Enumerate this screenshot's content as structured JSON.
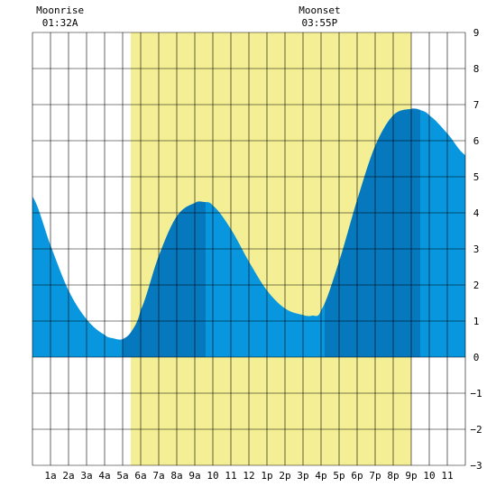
{
  "chart_data": {
    "type": "area",
    "x_ticks": [
      "1a",
      "2a",
      "3a",
      "4a",
      "5a",
      "6a",
      "7a",
      "8a",
      "9a",
      "10",
      "11",
      "12",
      "1p",
      "2p",
      "3p",
      "4p",
      "5p",
      "6p",
      "7p",
      "8p",
      "9p",
      "10",
      "11"
    ],
    "xlim": [
      0,
      24
    ],
    "ylim": [
      -3,
      9
    ],
    "y_ticks": [
      "9",
      "8",
      "7",
      "6",
      "5",
      "4",
      "3",
      "2",
      "1",
      "0",
      "−1",
      "−2",
      "−3"
    ],
    "daylight": {
      "start_hour": 5.45,
      "end_hour": 21.0
    },
    "moonrise": {
      "label": "Moonrise",
      "time": "01:32A",
      "hour": 1.53
    },
    "moonset": {
      "label": "Moonset",
      "time": "03:55P",
      "hour": 15.92
    },
    "tide_curve": {
      "hours": [
        0,
        1,
        2,
        3,
        4,
        4.5,
        5,
        5.5,
        6,
        7,
        8,
        9,
        9.5,
        10,
        11,
        12,
        13,
        14,
        15,
        15.5,
        16,
        17,
        18,
        19,
        20,
        21,
        21.5,
        22,
        23,
        24
      ],
      "heights": [
        4.45,
        3.1,
        1.85,
        1.05,
        0.62,
        0.52,
        0.5,
        0.72,
        1.3,
        2.8,
        3.9,
        4.27,
        4.3,
        4.2,
        3.55,
        2.65,
        1.85,
        1.35,
        1.17,
        1.15,
        1.3,
        2.65,
        4.35,
        5.85,
        6.7,
        6.88,
        6.85,
        6.7,
        6.2,
        5.6
      ]
    },
    "dark_segments": [
      [
        5.0,
        9.6
      ],
      [
        16.2,
        21.5
      ]
    ],
    "colors": {
      "daylight": "#f4ef94",
      "tide": "#0897df",
      "tide_dark": "#0578be",
      "grid": "#000000"
    }
  }
}
